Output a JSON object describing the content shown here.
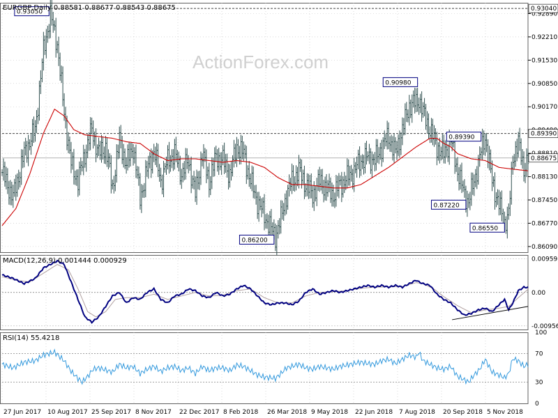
{
  "colors": {
    "bar": "#2f4f4f",
    "sma": "#cc0000",
    "macd": "#000080",
    "signal": "#b0a0a0",
    "rsi": "#3399dd",
    "grid": "#c0c0c0",
    "refline": "#404040",
    "trendline": "#000000"
  },
  "chart_data": {
    "type": "line",
    "symbol_header": "EURGBP,Daily  0.88581 0.88677 0.88543 0.88675",
    "watermark": "ActionForex.com",
    "x_dates": [
      "27 Jun 2017",
      "10 Aug 2017",
      "25 Sep 2017",
      "8 Nov 2017",
      "22 Dec 2017",
      "8 Feb 2018",
      "26 Mar 2018",
      "9 May 2018",
      "22 Jun 2018",
      "7 Aug 2018",
      "20 Sep 2018",
      "5 Nov 2018"
    ],
    "price": {
      "ylim": [
        0.85925,
        0.93205
      ],
      "y_ticks": [
        "0.92890",
        "0.92210",
        "0.91530",
        "0.90850",
        "0.90170",
        "0.89490",
        "0.88810",
        "0.88130",
        "0.87450",
        "0.86770",
        "0.86090"
      ],
      "current_price": "0.88675",
      "current_price_value": 0.88675,
      "hline_upper_label": "0.93040",
      "hline_upper_value": 0.9304,
      "hline_lower_label": "0.89390",
      "hline_lower_value": 0.8939,
      "annotations": [
        {
          "label": "0.93050",
          "date_index": 35,
          "value": 0.9305
        },
        {
          "label": "0.86200",
          "date_index": 198,
          "value": 0.862
        },
        {
          "label": "0.90980",
          "date_index": 302,
          "value": 0.9098
        },
        {
          "label": "0.89390",
          "date_index": 348,
          "value": 0.8939
        },
        {
          "label": "0.87220",
          "date_index": 337,
          "value": 0.8722
        },
        {
          "label": "0.86550",
          "date_index": 365,
          "value": 0.8655
        }
      ],
      "keypoints": [
        [
          0,
          0.8825
        ],
        [
          8,
          0.8752
        ],
        [
          16,
          0.888
        ],
        [
          24,
          0.895
        ],
        [
          30,
          0.918
        ],
        [
          35,
          0.9285
        ],
        [
          40,
          0.92
        ],
        [
          45,
          0.9
        ],
        [
          50,
          0.885
        ],
        [
          55,
          0.88
        ],
        [
          60,
          0.888
        ],
        [
          65,
          0.895
        ],
        [
          70,
          0.888
        ],
        [
          75,
          0.89
        ],
        [
          80,
          0.878
        ],
        [
          85,
          0.892
        ],
        [
          90,
          0.885
        ],
        [
          95,
          0.89
        ],
        [
          100,
          0.875
        ],
        [
          105,
          0.883
        ],
        [
          110,
          0.889
        ],
        [
          115,
          0.88
        ],
        [
          120,
          0.886
        ],
        [
          125,
          0.888
        ],
        [
          130,
          0.882
        ],
        [
          135,
          0.886
        ],
        [
          140,
          0.876
        ],
        [
          145,
          0.888
        ],
        [
          150,
          0.88
        ],
        [
          155,
          0.887
        ],
        [
          160,
          0.886
        ],
        [
          165,
          0.882
        ],
        [
          170,
          0.89
        ],
        [
          175,
          0.888
        ],
        [
          180,
          0.88
        ],
        [
          185,
          0.874
        ],
        [
          190,
          0.87
        ],
        [
          195,
          0.866
        ],
        [
          198,
          0.864
        ],
        [
          202,
          0.869
        ],
        [
          206,
          0.876
        ],
        [
          210,
          0.88
        ],
        [
          215,
          0.883
        ],
        [
          220,
          0.879
        ],
        [
          225,
          0.876
        ],
        [
          230,
          0.88
        ],
        [
          235,
          0.878
        ],
        [
          240,
          0.876
        ],
        [
          245,
          0.879
        ],
        [
          250,
          0.881
        ],
        [
          255,
          0.883
        ],
        [
          260,
          0.886
        ],
        [
          265,
          0.887
        ],
        [
          270,
          0.886
        ],
        [
          275,
          0.89
        ],
        [
          280,
          0.893
        ],
        [
          285,
          0.888
        ],
        [
          290,
          0.895
        ],
        [
          295,
          0.902
        ],
        [
          300,
          0.903
        ],
        [
          302,
          0.904
        ],
        [
          305,
          0.9
        ],
        [
          310,
          0.895
        ],
        [
          315,
          0.89
        ],
        [
          320,
          0.888
        ],
        [
          325,
          0.892
        ],
        [
          330,
          0.883
        ],
        [
          335,
          0.876
        ],
        [
          338,
          0.874
        ],
        [
          342,
          0.88
        ],
        [
          346,
          0.887
        ],
        [
          350,
          0.893
        ],
        [
          355,
          0.88
        ],
        [
          360,
          0.873
        ],
        [
          364,
          0.868
        ],
        [
          367,
          0.87
        ],
        [
          370,
          0.887
        ],
        [
          374,
          0.891
        ],
        [
          378,
          0.884
        ],
        [
          381,
          0.886
        ]
      ],
      "sma_keypoints": [
        [
          0,
          0.867
        ],
        [
          10,
          0.872
        ],
        [
          20,
          0.882
        ],
        [
          30,
          0.894
        ],
        [
          38,
          0.901
        ],
        [
          45,
          0.899
        ],
        [
          52,
          0.895
        ],
        [
          60,
          0.8935
        ],
        [
          70,
          0.893
        ],
        [
          80,
          0.8925
        ],
        [
          90,
          0.8915
        ],
        [
          100,
          0.891
        ],
        [
          110,
          0.888
        ],
        [
          120,
          0.886
        ],
        [
          130,
          0.8865
        ],
        [
          140,
          0.8865
        ],
        [
          150,
          0.886
        ],
        [
          160,
          0.8855
        ],
        [
          170,
          0.886
        ],
        [
          180,
          0.8855
        ],
        [
          190,
          0.884
        ],
        [
          200,
          0.881
        ],
        [
          210,
          0.879
        ],
        [
          220,
          0.879
        ],
        [
          230,
          0.8785
        ],
        [
          240,
          0.878
        ],
        [
          250,
          0.878
        ],
        [
          260,
          0.879
        ],
        [
          270,
          0.8815
        ],
        [
          280,
          0.884
        ],
        [
          290,
          0.887
        ],
        [
          300,
          0.89
        ],
        [
          310,
          0.8925
        ],
        [
          315,
          0.8925
        ],
        [
          320,
          0.891
        ],
        [
          325,
          0.89
        ],
        [
          330,
          0.888
        ],
        [
          340,
          0.8865
        ],
        [
          350,
          0.886
        ],
        [
          360,
          0.884
        ],
        [
          370,
          0.8835
        ],
        [
          381,
          0.883
        ]
      ]
    },
    "macd": {
      "title": "MACD(12,26,9) 0.001444 0.000929",
      "ylim": [
        -0.0106,
        0.0107
      ],
      "y_ticks": [
        "0.009593",
        "0.00",
        "-0.009562"
      ],
      "y_tick_values": [
        0.009593,
        0.0,
        -0.009562
      ],
      "keypoints": [
        [
          0,
          0.005
        ],
        [
          8,
          0.004
        ],
        [
          16,
          0.0025
        ],
        [
          24,
          0.004
        ],
        [
          30,
          0.007
        ],
        [
          40,
          0.009
        ],
        [
          45,
          0.008
        ],
        [
          50,
          0.003
        ],
        [
          55,
          -0.002
        ],
        [
          60,
          -0.007
        ],
        [
          65,
          -0.0085
        ],
        [
          70,
          -0.007
        ],
        [
          75,
          -0.004
        ],
        [
          80,
          -0.001
        ],
        [
          85,
          0.0
        ],
        [
          90,
          -0.003
        ],
        [
          95,
          -0.0015
        ],
        [
          100,
          -0.002
        ],
        [
          105,
          0.0
        ],
        [
          110,
          0.001
        ],
        [
          115,
          -0.002
        ],
        [
          120,
          -0.003
        ],
        [
          125,
          -0.001
        ],
        [
          130,
          -0.0005
        ],
        [
          135,
          0.001
        ],
        [
          140,
          0.0005
        ],
        [
          145,
          -0.001
        ],
        [
          150,
          -0.0015
        ],
        [
          155,
          0.0
        ],
        [
          160,
          -0.001
        ],
        [
          165,
          -0.0005
        ],
        [
          170,
          0.001
        ],
        [
          175,
          0.002
        ],
        [
          180,
          0.001
        ],
        [
          185,
          -0.001
        ],
        [
          190,
          -0.003
        ],
        [
          195,
          -0.0035
        ],
        [
          200,
          -0.003
        ],
        [
          205,
          -0.003
        ],
        [
          210,
          -0.0035
        ],
        [
          215,
          -0.0025
        ],
        [
          220,
          0.0
        ],
        [
          225,
          0.001
        ],
        [
          230,
          -0.0005
        ],
        [
          235,
          0.0
        ],
        [
          240,
          0.0005
        ],
        [
          245,
          0.0
        ],
        [
          250,
          0.0005
        ],
        [
          255,
          0.001
        ],
        [
          260,
          0.0015
        ],
        [
          265,
          0.002
        ],
        [
          270,
          0.0015
        ],
        [
          275,
          0.002
        ],
        [
          280,
          0.0015
        ],
        [
          285,
          0.002
        ],
        [
          290,
          0.0015
        ],
        [
          295,
          0.0025
        ],
        [
          300,
          0.0035
        ],
        [
          302,
          0.003
        ],
        [
          305,
          0.0025
        ],
        [
          310,
          0.002
        ],
        [
          315,
          -0.0005
        ],
        [
          320,
          -0.002
        ],
        [
          325,
          -0.003
        ],
        [
          330,
          -0.005
        ],
        [
          335,
          -0.0065
        ],
        [
          340,
          -0.006
        ],
        [
          345,
          -0.005
        ],
        [
          350,
          -0.0045
        ],
        [
          355,
          -0.0055
        ],
        [
          360,
          -0.0035
        ],
        [
          364,
          -0.002
        ],
        [
          367,
          -0.005
        ],
        [
          370,
          -0.003
        ],
        [
          374,
          0.0005
        ],
        [
          378,
          0.0015
        ],
        [
          381,
          0.0014
        ]
      ],
      "signal_keypoints": [
        [
          0,
          0.0045
        ],
        [
          10,
          0.0035
        ],
        [
          20,
          0.003
        ],
        [
          30,
          0.0055
        ],
        [
          40,
          0.008
        ],
        [
          48,
          0.0065
        ],
        [
          55,
          0.001
        ],
        [
          62,
          -0.0055
        ],
        [
          68,
          -0.007
        ],
        [
          75,
          -0.0055
        ],
        [
          82,
          -0.002
        ],
        [
          90,
          -0.0015
        ],
        [
          100,
          -0.0015
        ],
        [
          110,
          -0.0005
        ],
        [
          120,
          -0.002
        ],
        [
          130,
          -0.001
        ],
        [
          140,
          0.0
        ],
        [
          150,
          -0.001
        ],
        [
          160,
          -0.0008
        ],
        [
          170,
          0.0005
        ],
        [
          180,
          0.001
        ],
        [
          190,
          -0.0015
        ],
        [
          200,
          -0.003
        ],
        [
          210,
          -0.003
        ],
        [
          220,
          -0.001
        ],
        [
          230,
          0.0
        ],
        [
          240,
          0.0002
        ],
        [
          250,
          0.0005
        ],
        [
          260,
          0.0012
        ],
        [
          270,
          0.0015
        ],
        [
          280,
          0.0016
        ],
        [
          290,
          0.0017
        ],
        [
          300,
          0.0028
        ],
        [
          305,
          0.0025
        ],
        [
          312,
          0.0012
        ],
        [
          320,
          -0.0012
        ],
        [
          330,
          -0.0038
        ],
        [
          340,
          -0.0058
        ],
        [
          350,
          -0.005
        ],
        [
          360,
          -0.0045
        ],
        [
          367,
          -0.004
        ],
        [
          374,
          -0.0015
        ],
        [
          381,
          0.0009
        ]
      ],
      "trendline": [
        [
          326,
          -0.0078
        ],
        [
          381,
          -0.004
        ]
      ]
    },
    "rsi": {
      "title": "RSI(14) 55.4218",
      "ylim": [
        0,
        100
      ],
      "y_ticks": [
        "100",
        "70",
        "30",
        "0"
      ],
      "y_tick_values": [
        100,
        70,
        30,
        0
      ],
      "keypoints": [
        [
          0,
          55
        ],
        [
          8,
          50
        ],
        [
          16,
          58
        ],
        [
          24,
          60
        ],
        [
          30,
          68
        ],
        [
          38,
          72
        ],
        [
          45,
          60
        ],
        [
          50,
          45
        ],
        [
          55,
          35
        ],
        [
          58,
          30
        ],
        [
          62,
          38
        ],
        [
          66,
          48
        ],
        [
          70,
          50
        ],
        [
          75,
          47
        ],
        [
          80,
          44
        ],
        [
          85,
          55
        ],
        [
          90,
          50
        ],
        [
          95,
          52
        ],
        [
          100,
          42
        ],
        [
          105,
          48
        ],
        [
          110,
          52
        ],
        [
          115,
          45
        ],
        [
          120,
          50
        ],
        [
          125,
          52
        ],
        [
          130,
          46
        ],
        [
          135,
          50
        ],
        [
          140,
          42
        ],
        [
          145,
          52
        ],
        [
          150,
          46
        ],
        [
          155,
          50
        ],
        [
          160,
          50
        ],
        [
          165,
          46
        ],
        [
          170,
          54
        ],
        [
          175,
          52
        ],
        [
          180,
          46
        ],
        [
          185,
          40
        ],
        [
          190,
          37
        ],
        [
          195,
          36
        ],
        [
          198,
          35
        ],
        [
          202,
          42
        ],
        [
          206,
          50
        ],
        [
          210,
          52
        ],
        [
          215,
          55
        ],
        [
          220,
          50
        ],
        [
          225,
          48
        ],
        [
          230,
          52
        ],
        [
          235,
          50
        ],
        [
          240,
          48
        ],
        [
          245,
          52
        ],
        [
          250,
          54
        ],
        [
          255,
          56
        ],
        [
          260,
          58
        ],
        [
          265,
          56
        ],
        [
          270,
          55
        ],
        [
          275,
          60
        ],
        [
          280,
          62
        ],
        [
          285,
          56
        ],
        [
          290,
          62
        ],
        [
          295,
          68
        ],
        [
          300,
          65
        ],
        [
          302,
          72
        ],
        [
          305,
          60
        ],
        [
          310,
          55
        ],
        [
          315,
          50
        ],
        [
          320,
          48
        ],
        [
          325,
          52
        ],
        [
          330,
          38
        ],
        [
          335,
          33
        ],
        [
          338,
          30
        ],
        [
          342,
          40
        ],
        [
          346,
          48
        ],
        [
          350,
          62
        ],
        [
          355,
          44
        ],
        [
          360,
          40
        ],
        [
          364,
          36
        ],
        [
          367,
          42
        ],
        [
          370,
          63
        ],
        [
          374,
          60
        ],
        [
          378,
          52
        ],
        [
          381,
          55
        ]
      ]
    }
  }
}
